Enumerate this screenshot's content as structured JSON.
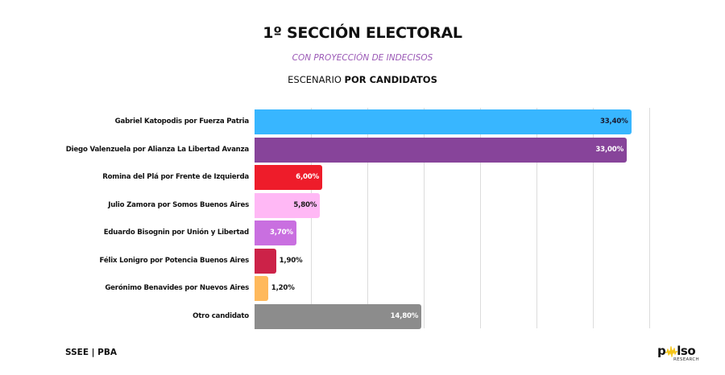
{
  "header": {
    "title": "1º SECCIÓN ELECTORAL",
    "subtitle": "CON PROYECCIÓN DE INDECISOS",
    "scenario_prefix": "ESCENARIO ",
    "scenario_bold": "POR CANDIDATOS"
  },
  "footer": {
    "left_text": "SSEE | PBA",
    "logo_word_left": "p",
    "logo_word_right": "lso",
    "logo_sub": "RESEARCH",
    "logo_wave_color": "#f5c518"
  },
  "chart_data": {
    "type": "bar",
    "orientation": "horizontal",
    "title": "1º SECCIÓN ELECTORAL",
    "subtitle": "CON PROYECCIÓN DE INDECISOS",
    "annotation": "ESCENARIO POR CANDIDATOS",
    "xlabel": "",
    "ylabel": "",
    "xlim": [
      0,
      35
    ],
    "grid": true,
    "gridline_step": 5,
    "legend": "none",
    "categories": [
      "Gabriel Katopodis por Fuerza Patria",
      "Diego Valenzuela por Alianza La Libertad Avanza",
      "Romina del Plá por Frente de Izquierda",
      "Julio Zamora por Somos Buenos Aires",
      "Eduardo Bisognin por Unión y Libertad",
      "Félix Lonigro por Potencia Buenos Aires",
      "Gerónimo Benavides por Nuevos Aires",
      "Otro candidato"
    ],
    "values": [
      33.4,
      33.0,
      6.0,
      5.8,
      3.7,
      1.9,
      1.2,
      14.8
    ],
    "value_labels": [
      "33,40%",
      "33,00%",
      "6,00%",
      "5,80%",
      "3,70%",
      "1,90%",
      "1,20%",
      "14,80%"
    ],
    "colors": [
      "#38b6ff",
      "#87449a",
      "#ee1c2a",
      "#ffb8f5",
      "#c96fe0",
      "#cc2248",
      "#ffb95c",
      "#8c8c8c"
    ],
    "label_colors": [
      "#1a1a2e",
      "#ffffff",
      "#ffffff",
      "#1a1a1a",
      "#ffffff",
      "#111111",
      "#111111",
      "#ffffff"
    ],
    "label_inside": [
      true,
      true,
      true,
      true,
      true,
      false,
      false,
      true
    ]
  }
}
